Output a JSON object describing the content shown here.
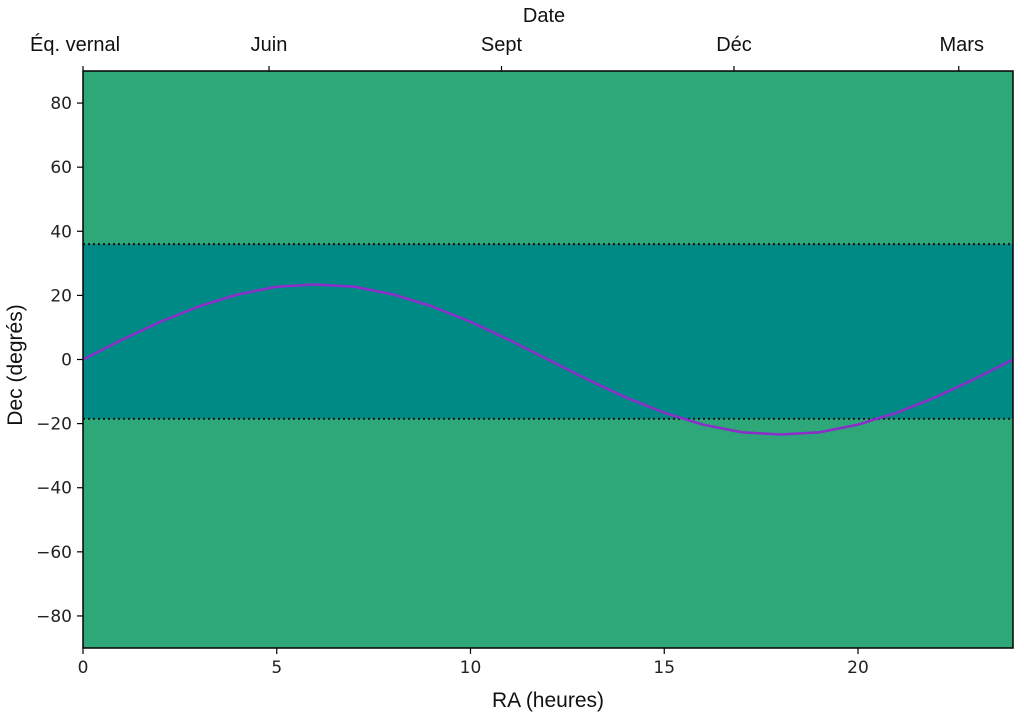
{
  "chart_data": {
    "type": "line",
    "xlabel": "RA (heures)",
    "ylabel": "Dec (degrés)",
    "top_axis_title": "Date",
    "xlim": [
      0,
      24
    ],
    "ylim": [
      -90,
      90
    ],
    "x_ticks": [
      0,
      5,
      10,
      15,
      20
    ],
    "y_ticks": [
      80,
      60,
      40,
      20,
      0,
      -20,
      -40,
      -60,
      -80
    ],
    "top_ticks": [
      {
        "label": "Éq. vernal",
        "ra": 0
      },
      {
        "label": "Juin",
        "ra": 4.8
      },
      {
        "label": "Sept",
        "ra": 10.8
      },
      {
        "label": "Déc",
        "ra": 16.8
      },
      {
        "label": "Mars",
        "ra": 22.6
      }
    ],
    "visible_band": {
      "dec_min": -18.5,
      "dec_max": 36
    },
    "series": [
      {
        "x": [
          0,
          1,
          2,
          3,
          4,
          5,
          6,
          7,
          8,
          9,
          10,
          11,
          12,
          13,
          14,
          15,
          16,
          17,
          18,
          19,
          20,
          21,
          22,
          23,
          24
        ],
        "y": [
          0,
          6.1,
          11.8,
          16.6,
          20.3,
          22.7,
          23.4,
          22.7,
          20.3,
          16.6,
          11.8,
          6.1,
          0,
          -6.1,
          -11.8,
          -16.6,
          -20.3,
          -22.7,
          -23.4,
          -22.7,
          -20.3,
          -16.6,
          -11.8,
          -6.1,
          0
        ]
      }
    ],
    "colors": {
      "background": "#2ea878",
      "band": "#008a86",
      "curve": "#8a2fc8",
      "band_edge": "#1a1a1a"
    },
    "grid": false
  }
}
